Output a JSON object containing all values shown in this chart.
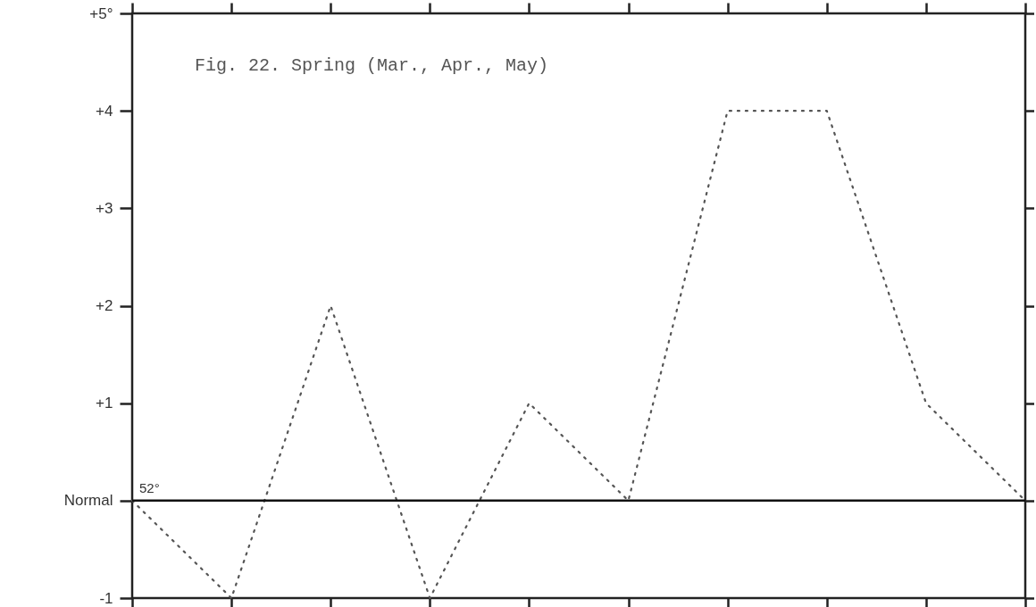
{
  "chart_data": {
    "type": "line",
    "title": "Fig. 22.  Spring (Mar., Apr., May)",
    "categories": [
      null,
      null,
      null,
      null,
      null,
      null,
      null,
      null,
      null,
      null
    ],
    "series": [
      {
        "color": "#555555",
        "values": [
          0,
          -1,
          2,
          -1,
          1,
          0,
          4,
          4,
          1,
          0
        ]
      }
    ],
    "ylim": [
      -1,
      5
    ],
    "yticks": [
      {
        "value": 5,
        "label": "+5°"
      },
      {
        "value": 4,
        "label": "+4"
      },
      {
        "value": 3,
        "label": "+3"
      },
      {
        "value": 2,
        "label": "+2"
      },
      {
        "value": 1,
        "label": "+1"
      },
      {
        "value": 0,
        "label": "Normal"
      },
      -1
    ],
    "ref_lines": [
      {
        "axis": "y",
        "value": 0,
        "color": "#111111",
        "line_style": "solid"
      }
    ],
    "annotations": [
      "52°"
    ],
    "line_style": "dotted",
    "marker": "none",
    "grid": false,
    "tick_labels": "y"
  }
}
